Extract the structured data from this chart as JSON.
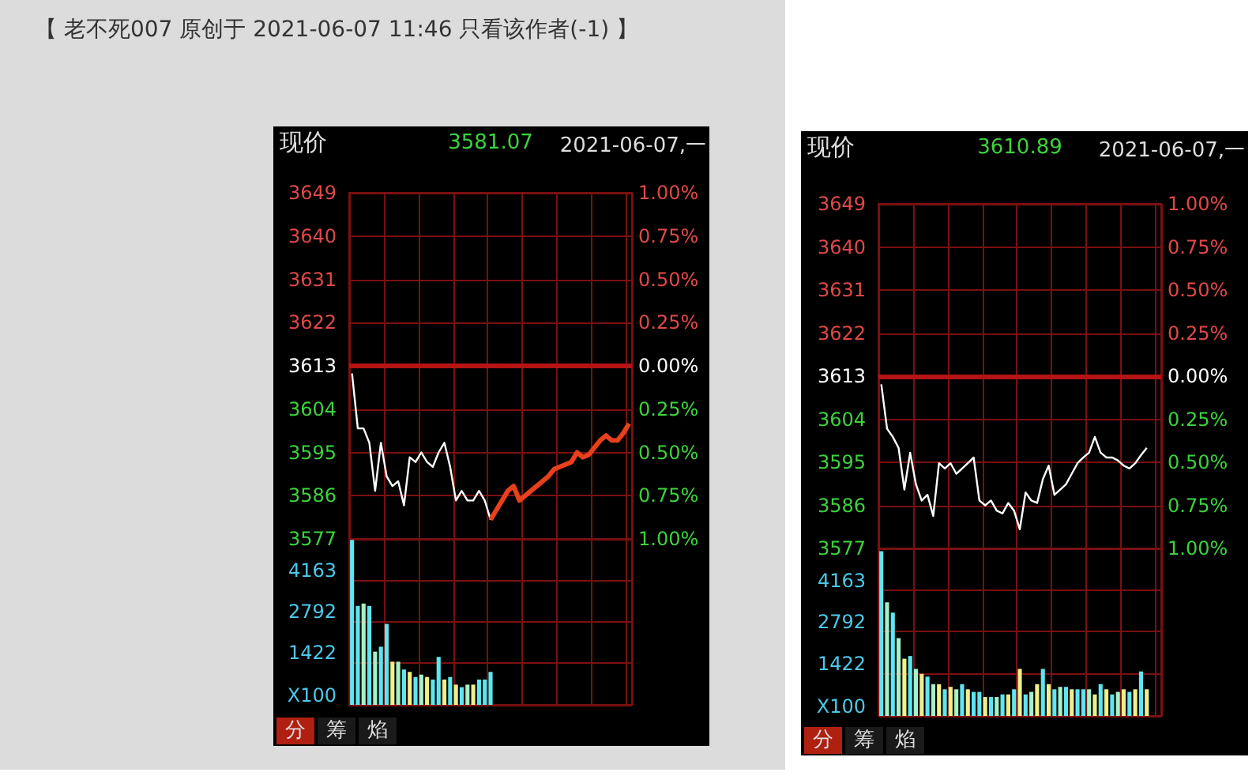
{
  "chart_data": [
    {
      "type": "line",
      "annotations": [
        "【 老不死007 原创于 2021-06-07 11:46 只看该作者(-1) 】",
        "现价",
        "3581.07",
        "2021-06-07,一"
      ],
      "categories": [
        null,
        null,
        null,
        null,
        null,
        null,
        null,
        null,
        null,
        null,
        null,
        null,
        null,
        null,
        null,
        null,
        null,
        null,
        null,
        null,
        null,
        null,
        null,
        null,
        null,
        null,
        null,
        null,
        null,
        null,
        null,
        null,
        null,
        null,
        null,
        null,
        null,
        null,
        null,
        null,
        null,
        null,
        null,
        null,
        null,
        null,
        null,
        null,
        null
      ],
      "series": [
        {
          "color": "#ffffff",
          "values": [
            3611.4,
            3600,
            3600,
            3597,
            3587,
            3597,
            3590,
            3588,
            3589,
            3584,
            3594,
            3593,
            3595,
            3593,
            3592,
            3595,
            3597,
            3592,
            3585,
            3587,
            3585,
            3585,
            3587,
            3585,
            3581,
            null,
            null,
            null,
            null,
            null,
            null,
            null,
            null,
            null,
            null,
            null,
            null,
            null,
            null,
            null,
            null,
            null,
            null,
            null,
            null,
            null,
            null,
            null,
            null
          ]
        },
        {
          "color": "#e8401c",
          "values": [
            null,
            null,
            null,
            null,
            null,
            null,
            null,
            null,
            null,
            null,
            null,
            null,
            null,
            null,
            null,
            null,
            null,
            null,
            null,
            null,
            null,
            null,
            null,
            null,
            3581,
            3583,
            3585,
            3587,
            3588,
            3585,
            3586,
            3587,
            3588,
            3589,
            3590,
            3591.5,
            3592,
            3592.5,
            3593,
            3595,
            3594,
            3594.5,
            3596,
            3597.5,
            3598.5,
            3597.5,
            3597.5,
            3599,
            3601
          ]
        }
      ],
      "ylim": [
        3577,
        3649
      ],
      "yticks": [
        3577,
        3586,
        3595,
        3604,
        3613,
        3622,
        3631,
        3640,
        3649
      ],
      "y2lim": [
        -1,
        1
      ],
      "y2ticks": [
        {
          "value": -1,
          "label": "1.00%"
        },
        {
          "value": -0.75,
          "label": "0.75%"
        },
        {
          "value": -0.5,
          "label": "0.50%"
        },
        {
          "value": -0.25,
          "label": "0.25%"
        },
        {
          "value": 0,
          "label": "0.00%"
        },
        {
          "value": 0.25,
          "label": "0.25%"
        },
        {
          "value": 0.5,
          "label": "0.50%"
        },
        {
          "value": 0.75,
          "label": "0.75%"
        },
        {
          "value": 1,
          "label": "1.00%"
        }
      ],
      "ref_lines": [
        {
          "axis": "y",
          "value": 3613,
          "color": "#b41414"
        }
      ],
      "grid": true,
      "tick_labels": "y"
    },
    {
      "type": "bar",
      "annotations": [
        "分",
        "筹",
        "焰"
      ],
      "categories": [
        null,
        null,
        null,
        null,
        null,
        null,
        null,
        null,
        null,
        null,
        null,
        null,
        null,
        null,
        null,
        null,
        null,
        null,
        null,
        null,
        null,
        null,
        null,
        null,
        null,
        null,
        null,
        null,
        null,
        null,
        null,
        null,
        null,
        null,
        null,
        null,
        null,
        null,
        null,
        null,
        null,
        null,
        null,
        null,
        null,
        null,
        null,
        null,
        null
      ],
      "values": [
        5500,
        3300,
        3380,
        3300,
        1775,
        1940,
        2700,
        1440,
        1440,
        1180,
        1100,
        930,
        1010,
        930,
        845,
        1600,
        845,
        930,
        676,
        590,
        676,
        676,
        845,
        845,
        1100,
        null,
        null,
        null,
        null,
        null,
        null,
        null,
        null,
        null,
        null,
        null,
        null,
        null,
        null,
        null,
        null,
        null,
        null,
        null,
        null,
        null,
        null,
        null,
        null
      ],
      "colors": [
        "#5ee6f0",
        "#5ee6f0",
        "#a6f2c8",
        "#5ee6f0",
        "#a6f2c8",
        "#5ee6f0",
        "#5ee6f0",
        "#f0f08a",
        "#a6f2c8",
        "#5ee6f0",
        "#f0f08a",
        "#5ee6f0",
        "#a6f2c8",
        "#f0f08a",
        "#5ee6f0",
        "#5ee6f0",
        "#f0f08a",
        "#5ee6f0",
        "#f0f08a",
        "#5ee6f0",
        "#a6f2c8",
        "#f0f08a",
        "#5ee6f0",
        "#5ee6f0",
        "#5ee6f0",
        "#5ee6f0",
        "#5ee6f0",
        "#5ee6f0",
        "#5ee6f0",
        "#5ee6f0",
        "#5ee6f0",
        "#5ee6f0",
        "#5ee6f0",
        "#5ee6f0",
        "#5ee6f0",
        "#5ee6f0",
        "#5ee6f0",
        "#5ee6f0",
        "#5ee6f0",
        "#5ee6f0",
        "#5ee6f0",
        "#5ee6f0",
        "#5ee6f0",
        "#5ee6f0",
        "#5ee6f0",
        "#5ee6f0",
        "#5ee6f0",
        "#5ee6f0",
        "#5ee6f0"
      ],
      "ylim": [
        0,
        5534
      ],
      "yticks": [
        {
          "value": 0,
          "label": "X100"
        },
        1422,
        2792,
        4163
      ],
      "grid": true,
      "tick_labels": "y"
    },
    {
      "type": "line",
      "annotations": [
        "现价",
        "3610.89",
        "2021-06-07,一"
      ],
      "categories": [
        null,
        null,
        null,
        null,
        null,
        null,
        null,
        null,
        null,
        null,
        null,
        null,
        null,
        null,
        null,
        null,
        null,
        null,
        null,
        null,
        null,
        null,
        null,
        null,
        null,
        null,
        null,
        null,
        null,
        null,
        null,
        null,
        null,
        null,
        null,
        null,
        null,
        null,
        null,
        null,
        null,
        null,
        null,
        null,
        null,
        null,
        null,
        null,
        null
      ],
      "series": [
        {
          "color": "#ffffff",
          "values": [
            3611.3,
            3602,
            3600.3,
            3598,
            3589.3,
            3597,
            3590.4,
            3587,
            3588.2,
            3583.8,
            3594.8,
            3593.7,
            3594.8,
            3592.6,
            3593.7,
            3594.8,
            3596,
            3587,
            3586,
            3587,
            3584.9,
            3584.3,
            3586.5,
            3584.9,
            3581,
            3588.7,
            3587,
            3586.5,
            3591.5,
            3594.3,
            3588.2,
            3589.3,
            3590.4,
            3592.6,
            3594.8,
            3596,
            3597,
            3600.3,
            3597,
            3596,
            3596,
            3595.4,
            3594.3,
            3593.7,
            3594.8,
            3596.5,
            3598,
            null,
            null
          ]
        }
      ],
      "ylim": [
        3577,
        3649
      ],
      "yticks": [
        3577,
        3586,
        3595,
        3604,
        3613,
        3622,
        3631,
        3640,
        3649
      ],
      "y2lim": [
        -1,
        1
      ],
      "y2ticks": [
        {
          "value": -1,
          "label": "1.00%"
        },
        {
          "value": -0.75,
          "label": "0.75%"
        },
        {
          "value": -0.5,
          "label": "0.50%"
        },
        {
          "value": -0.25,
          "label": "0.25%"
        },
        {
          "value": 0,
          "label": "0.00%"
        },
        {
          "value": 0.25,
          "label": "0.25%"
        },
        {
          "value": 0.5,
          "label": "0.50%"
        },
        {
          "value": 0.75,
          "label": "0.75%"
        },
        {
          "value": 1,
          "label": "1.00%"
        }
      ],
      "ref_lines": [
        {
          "axis": "y",
          "value": 3613,
          "color": "#b41414"
        }
      ],
      "grid": true,
      "tick_labels": "y"
    },
    {
      "type": "bar",
      "annotations": [
        "分",
        "筹",
        "焰"
      ],
      "categories": [
        null,
        null,
        null,
        null,
        null,
        null,
        null,
        null,
        null,
        null,
        null,
        null,
        null,
        null,
        null,
        null,
        null,
        null,
        null,
        null,
        null,
        null,
        null,
        null,
        null,
        null,
        null,
        null,
        null,
        null,
        null,
        null,
        null,
        null,
        null,
        null,
        null,
        null,
        null,
        null,
        null,
        null,
        null,
        null,
        null,
        null,
        null,
        null,
        null
      ],
      "values": [
        5440,
        3750,
        3410,
        2570,
        1890,
        1980,
        1555,
        1390,
        1300,
        1050,
        1050,
        880,
        960,
        880,
        1050,
        880,
        795,
        795,
        625,
        625,
        625,
        710,
        710,
        880,
        1555,
        710,
        795,
        1050,
        1555,
        1050,
        880,
        960,
        960,
        880,
        880,
        880,
        880,
        710,
        1050,
        880,
        710,
        795,
        880,
        795,
        880,
        1470,
        880,
        null,
        null
      ],
      "colors": [
        "#5ee6f0",
        "#a6f2c8",
        "#5ee6f0",
        "#a6f2c8",
        "#f0f08a",
        "#5ee6f0",
        "#a6f2c8",
        "#f0f08a",
        "#5ee6f0",
        "#a6f2c8",
        "#f0f08a",
        "#5ee6f0",
        "#f0f08a",
        "#a6f2c8",
        "#5ee6f0",
        "#f0f08a",
        "#5ee6f0",
        "#5ee6f0",
        "#f0f08a",
        "#5ee6f0",
        "#a6f2c8",
        "#5ee6f0",
        "#f0f08a",
        "#5ee6f0",
        "#f0f08a",
        "#5ee6f0",
        "#a6f2c8",
        "#f0f08a",
        "#5ee6f0",
        "#f0f08a",
        "#5ee6f0",
        "#a6f2c8",
        "#5ee6f0",
        "#f0f08a",
        "#5ee6f0",
        "#5ee6f0",
        "#a6f2c8",
        "#f0f08a",
        "#5ee6f0",
        "#f0f08a",
        "#5ee6f0",
        "#a6f2c8",
        "#f0f08a",
        "#5ee6f0",
        "#f0f08a",
        "#5ee6f0",
        "#f0f08a",
        "#5ee6f0",
        "#5ee6f0"
      ],
      "ylim": [
        0,
        5534
      ],
      "yticks": [
        {
          "value": 0,
          "label": "X100"
        },
        1422,
        2792,
        4163
      ],
      "grid": true,
      "tick_labels": "y"
    }
  ]
}
